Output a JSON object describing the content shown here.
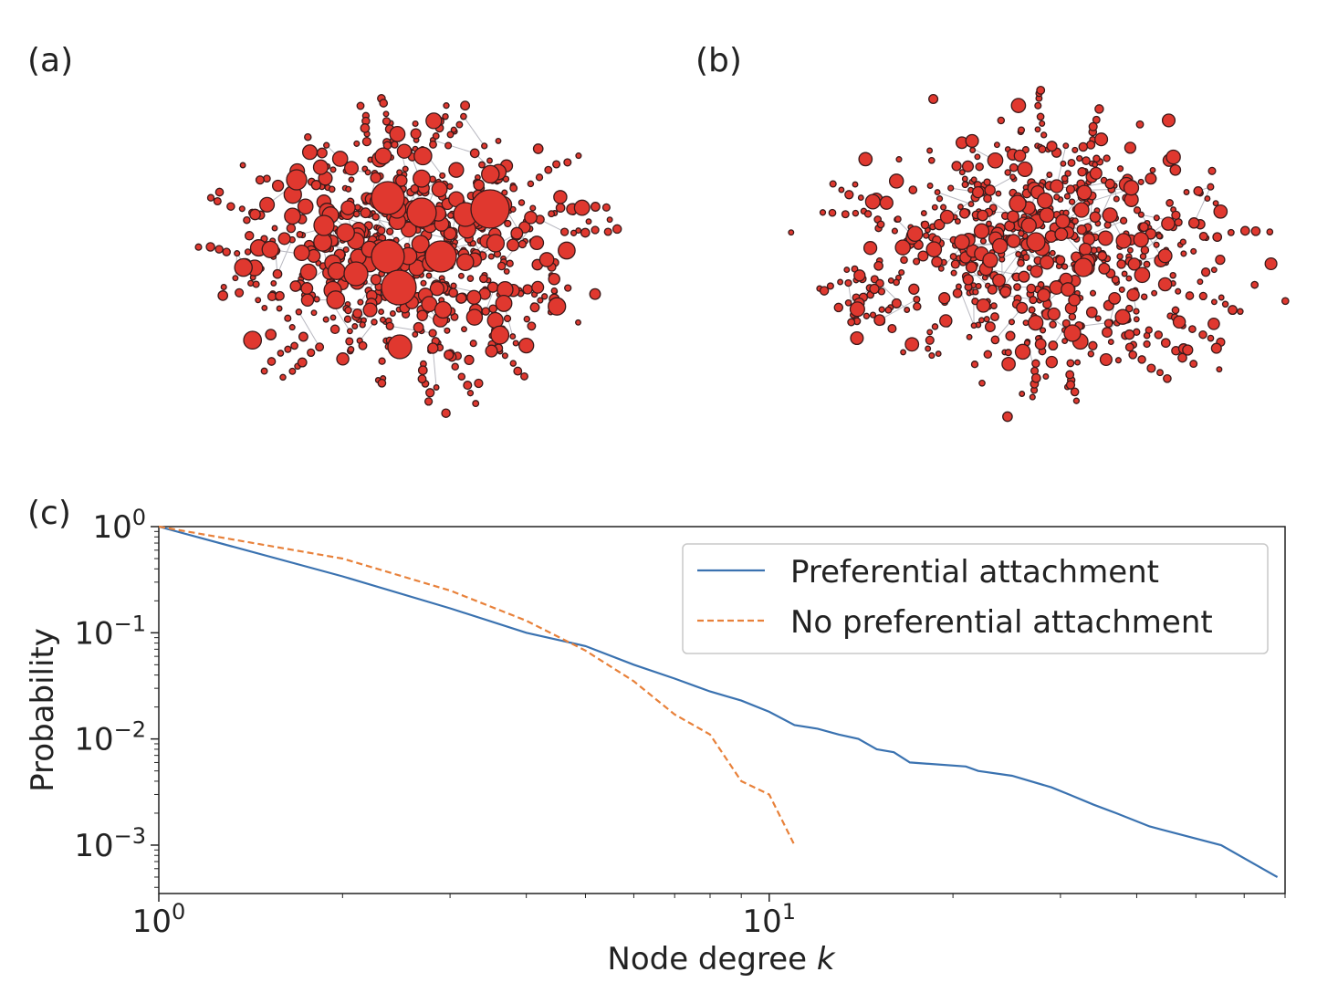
{
  "panels": {
    "a": "(a)",
    "b": "(b)",
    "c": "(c)"
  },
  "colors": {
    "node_fill": "#e0382f",
    "node_stroke": "#3a1a1a",
    "edge": "#b8b8c0",
    "series_pa": "#3a72b0",
    "series_nopa": "#e8813a"
  },
  "chart_data": {
    "type": "line",
    "xscale": "log",
    "yscale": "log",
    "xlim": [
      1,
      70
    ],
    "ylim": [
      0.00035,
      1
    ],
    "xlabel": "Node degree",
    "xlabel_italic": "k",
    "ylabel": "Probability",
    "x_ticks": [
      {
        "value": 1,
        "base": "10",
        "exp": "0"
      },
      {
        "value": 10,
        "base": "10",
        "exp": "1"
      }
    ],
    "y_ticks": [
      {
        "value": 1,
        "base": "10",
        "exp": "0"
      },
      {
        "value": 0.1,
        "base": "10",
        "exp": "−1"
      },
      {
        "value": 0.01,
        "base": "10",
        "exp": "−2"
      },
      {
        "value": 0.001,
        "base": "10",
        "exp": "−3"
      }
    ],
    "legend_position": "top-right",
    "grid": false,
    "series": [
      {
        "name": "Preferential attachment",
        "style": "solid",
        "x": [
          1,
          2,
          3,
          4,
          5,
          6,
          7,
          8,
          9,
          10,
          11,
          12,
          13,
          14,
          15,
          16,
          17,
          21,
          22,
          25,
          29,
          31,
          34,
          37,
          42,
          55,
          68
        ],
        "y": [
          1,
          0.34,
          0.17,
          0.1,
          0.075,
          0.05,
          0.037,
          0.028,
          0.023,
          0.018,
          0.0135,
          0.0125,
          0.011,
          0.01,
          0.008,
          0.0075,
          0.006,
          0.0055,
          0.005,
          0.0045,
          0.0035,
          0.003,
          0.0024,
          0.002,
          0.0015,
          0.001,
          0.0005
        ]
      },
      {
        "name": "No preferential attachment",
        "style": "dashed",
        "x": [
          1,
          2,
          3,
          4,
          5,
          6,
          7,
          8,
          9,
          10,
          11
        ],
        "y": [
          1,
          0.5,
          0.25,
          0.13,
          0.068,
          0.035,
          0.017,
          0.011,
          0.004,
          0.003,
          0.001
        ]
      }
    ]
  }
}
